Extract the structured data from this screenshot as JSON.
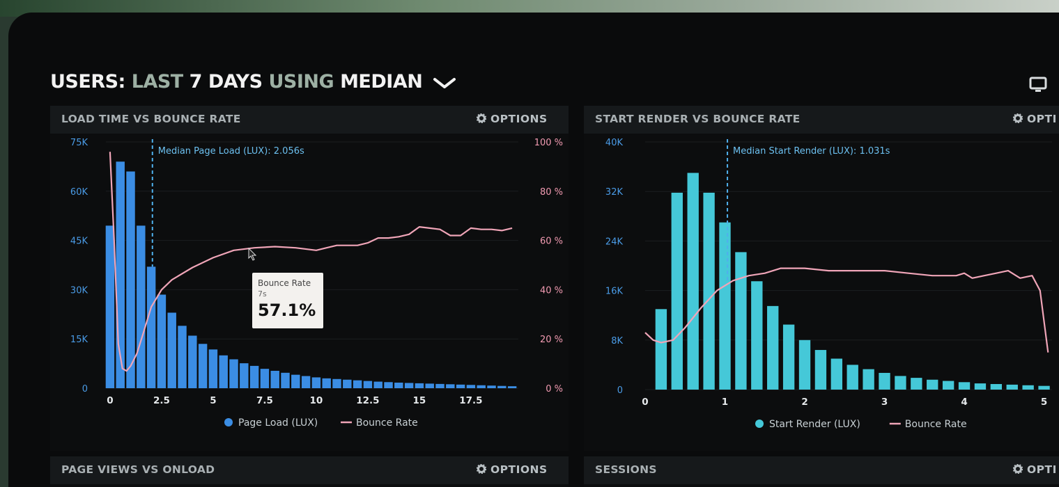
{
  "header": {
    "part1": "USERS:",
    "part2": "LAST",
    "part3": "7 DAYS",
    "part4": "USING",
    "part5": "MEDIAN",
    "chevron_icon": "chevron-down-icon",
    "device_icon": "monitor-icon"
  },
  "panels": [
    {
      "title": "LOAD TIME VS BOUNCE RATE",
      "options": "OPTIONS"
    },
    {
      "title": "START RENDER VS BOUNCE RATE",
      "options": "OPTI"
    },
    {
      "title": "PAGE VIEWS VS ONLOAD",
      "options": "OPTIONS"
    },
    {
      "title": "SESSIONS",
      "options": "OPTI"
    }
  ],
  "tooltip": {
    "label": "Bounce Rate",
    "x": "7s",
    "value": "57.1%"
  },
  "colors": {
    "load_bar": "#3b8de4",
    "render_bar": "#45c8d8",
    "bounce": "#f0a5b8",
    "median_line": "#4fa3e8"
  },
  "chart_data": [
    {
      "type": "bar",
      "title": "LOAD TIME VS BOUNCE RATE",
      "annotation": "Median Page Load (LUX): 2.056s",
      "median_x": 2.056,
      "x_ticks": [
        "0",
        "2.5",
        "5",
        "7.5",
        "10",
        "12.5",
        "15",
        "17.5"
      ],
      "y_ticks_left": [
        "0",
        "15K",
        "30K",
        "45K",
        "60K",
        "75K"
      ],
      "y_ticks_right": [
        "0 %",
        "20 %",
        "40 %",
        "60 %",
        "80 %",
        "100 %"
      ],
      "xlim": [
        -0.2,
        19.8
      ],
      "ylim": [
        0,
        75000
      ],
      "y2lim": [
        0,
        100
      ],
      "bar_width": 0.5,
      "series": [
        {
          "name": "Page Load (LUX)",
          "kind": "bar",
          "x": [
            0,
            0.5,
            1,
            1.5,
            2,
            2.5,
            3,
            3.5,
            4,
            4.5,
            5,
            5.5,
            6,
            6.5,
            7,
            7.5,
            8,
            8.5,
            9,
            9.5,
            10,
            10.5,
            11,
            11.5,
            12,
            12.5,
            13,
            13.5,
            14,
            14.5,
            15,
            15.5,
            16,
            16.5,
            17,
            17.5,
            18,
            18.5,
            19,
            19.5
          ],
          "values": [
            49500,
            69000,
            66000,
            49500,
            37000,
            28500,
            23000,
            19000,
            16000,
            13500,
            11800,
            10000,
            8800,
            7600,
            6800,
            5900,
            5300,
            4700,
            4100,
            3700,
            3300,
            3000,
            2800,
            2600,
            2400,
            2200,
            2000,
            1850,
            1700,
            1600,
            1500,
            1400,
            1300,
            1200,
            1100,
            1000,
            900,
            800,
            700,
            600
          ]
        },
        {
          "name": "Bounce Rate",
          "kind": "line",
          "axis": "right",
          "x": [
            0,
            0.2,
            0.4,
            0.6,
            0.8,
            1,
            1.3,
            1.6,
            2,
            2.5,
            3,
            4,
            5,
            6,
            7,
            8,
            9,
            10,
            10.5,
            11,
            12,
            12.5,
            13,
            13.5,
            14,
            14.5,
            15,
            15.5,
            16,
            16.5,
            17,
            17.5,
            18,
            18.5,
            19,
            19.5
          ],
          "values": [
            96,
            60,
            18,
            8,
            7,
            9,
            14,
            22,
            33,
            40,
            44,
            49,
            53,
            56,
            57,
            57.5,
            57,
            56,
            57,
            58,
            58,
            59,
            61,
            61,
            61.5,
            62.5,
            65.5,
            65,
            64.5,
            62,
            62,
            65,
            64.5,
            64.5,
            64,
            65
          ]
        }
      ],
      "legend": "bottom"
    },
    {
      "type": "bar",
      "title": "START RENDER VS BOUNCE RATE",
      "annotation": "Median Start Render (LUX): 1.031s",
      "median_x": 1.031,
      "x_ticks": [
        "0",
        "1",
        "2",
        "3",
        "4",
        "5"
      ],
      "y_ticks_left": [
        "0",
        "8K",
        "16K",
        "24K",
        "32K",
        "40K"
      ],
      "xlim": [
        0,
        5.1
      ],
      "ylim": [
        0,
        40000
      ],
      "bar_width": 0.17,
      "series": [
        {
          "name": "Start Render (LUX)",
          "kind": "bar",
          "x": [
            0.2,
            0.4,
            0.6,
            0.8,
            1,
            1.2,
            1.4,
            1.6,
            1.8,
            2,
            2.2,
            2.4,
            2.6,
            2.8,
            3,
            3.2,
            3.4,
            3.6,
            3.8,
            4,
            4.2,
            4.4,
            4.6,
            4.8,
            5
          ],
          "values": [
            13000,
            31800,
            35000,
            31800,
            27000,
            22200,
            17500,
            13500,
            10500,
            8000,
            6400,
            5000,
            4000,
            3300,
            2700,
            2200,
            1900,
            1600,
            1400,
            1200,
            1000,
            900,
            800,
            700,
            600
          ]
        },
        {
          "name": "Bounce Rate",
          "kind": "line",
          "axis": "right",
          "x": [
            0,
            0.1,
            0.2,
            0.35,
            0.5,
            0.7,
            0.9,
            1.1,
            1.3,
            1.5,
            1.7,
            2,
            2.3,
            2.6,
            3,
            3.3,
            3.6,
            3.9,
            4.0,
            4.1,
            4.25,
            4.4,
            4.55,
            4.7,
            4.85,
            4.95,
            5.05
          ],
          "values": [
            23,
            20,
            19,
            20,
            25,
            33,
            40,
            44,
            46,
            47,
            49,
            49,
            48,
            48,
            48,
            47,
            46,
            46,
            47,
            45,
            46,
            47,
            48,
            45,
            46,
            40,
            15
          ]
        }
      ],
      "legend": "bottom"
    }
  ]
}
